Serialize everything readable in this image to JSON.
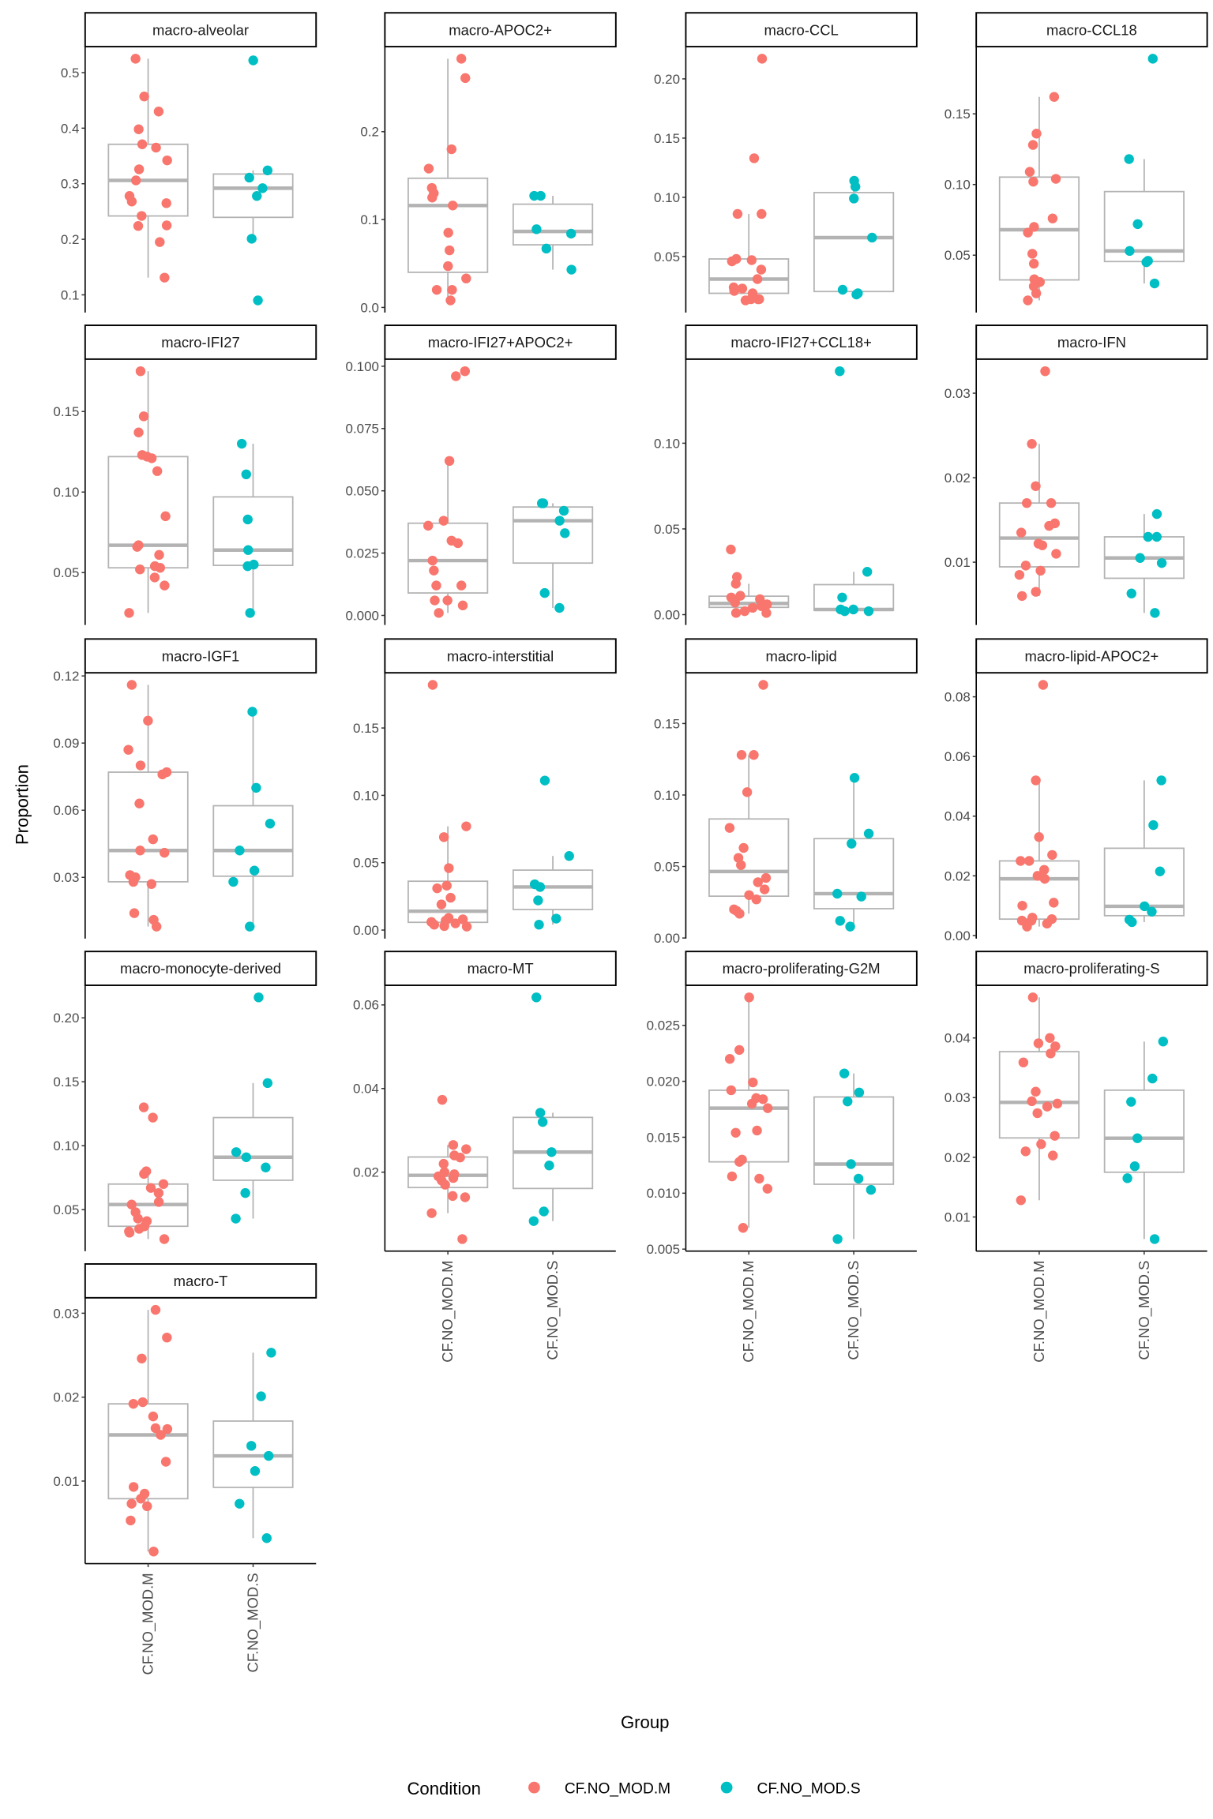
{
  "chart_data": {
    "type": "boxplot+jitter",
    "xlabel": "Group",
    "ylabel": "Proportion",
    "groups": [
      "CF.NO_MOD.M",
      "CF.NO_MOD.S"
    ],
    "legend": {
      "title": "Condition",
      "position": "bottom",
      "entries": [
        {
          "label": "CF.NO_MOD.M",
          "color": "#F8766D"
        },
        {
          "label": "CF.NO_MOD.S",
          "color": "#00BFC4"
        }
      ]
    },
    "box_color": "#B3B3B3",
    "grid": false,
    "facets": [
      {
        "title": "macro-alveolar",
        "ticks": [
          "0.1",
          "0.2",
          "0.3",
          "0.4",
          "0.5"
        ],
        "M": [
          0.525,
          0.457,
          0.43,
          0.398,
          0.371,
          0.365,
          0.342,
          0.326,
          0.306,
          0.278,
          0.268,
          0.265,
          0.242,
          0.225,
          0.224,
          0.195,
          0.131
        ],
        "S": [
          0.522,
          0.324,
          0.311,
          0.292,
          0.278,
          0.201,
          0.09
        ]
      },
      {
        "title": "macro-APOC2+",
        "ticks": [
          "0.0",
          "0.1",
          "0.2"
        ],
        "M": [
          0.283,
          0.261,
          0.18,
          0.158,
          0.136,
          0.13,
          0.125,
          0.116,
          0.085,
          0.065,
          0.047,
          0.033,
          0.02,
          0.02,
          0.008
        ],
        "S": [
          0.127,
          0.127,
          0.089,
          0.084,
          0.067,
          0.043
        ]
      },
      {
        "title": "macro-CCL",
        "ticks": [
          "0.05",
          "0.10",
          "0.15",
          "0.20"
        ],
        "M": [
          0.217,
          0.133,
          0.086,
          0.086,
          0.048,
          0.047,
          0.046,
          0.039,
          0.031,
          0.024,
          0.023,
          0.021,
          0.019,
          0.014,
          0.014,
          0.013,
          0.014
        ],
        "S": [
          0.114,
          0.109,
          0.099,
          0.066,
          0.022,
          0.019,
          0.018
        ]
      },
      {
        "title": "macro-CCL18",
        "ticks": [
          "0.05",
          "0.10",
          "0.15"
        ],
        "M": [
          0.162,
          0.136,
          0.128,
          0.109,
          0.104,
          0.102,
          0.076,
          0.07,
          0.066,
          0.051,
          0.044,
          0.033,
          0.031,
          0.028,
          0.023,
          0.018
        ],
        "S": [
          0.189,
          0.118,
          0.072,
          0.053,
          0.046,
          0.045,
          0.03
        ]
      },
      {
        "title": "macro-IFI27",
        "ticks": [
          "0.05",
          "0.10",
          "0.15"
        ],
        "M": [
          0.175,
          0.147,
          0.137,
          0.123,
          0.122,
          0.121,
          0.113,
          0.085,
          0.067,
          0.066,
          0.061,
          0.054,
          0.053,
          0.052,
          0.047,
          0.042,
          0.025
        ],
        "S": [
          0.13,
          0.111,
          0.083,
          0.064,
          0.055,
          0.054,
          0.025
        ]
      },
      {
        "title": "macro-IFI27+APOC2+",
        "ticks": [
          "0.000",
          "0.025",
          "0.050",
          "0.075",
          "0.100"
        ],
        "M": [
          0.098,
          0.096,
          0.062,
          0.038,
          0.036,
          0.03,
          0.029,
          0.022,
          0.018,
          0.012,
          0.012,
          0.006,
          0.006,
          0.004,
          0.001
        ],
        "S": [
          0.045,
          0.045,
          0.042,
          0.038,
          0.033,
          0.009,
          0.003
        ]
      },
      {
        "title": "macro-IFI27+CCL18+",
        "ticks": [
          "0.00",
          "0.05",
          "0.10"
        ],
        "M": [
          0.038,
          0.022,
          0.018,
          0.011,
          0.01,
          0.009,
          0.007,
          0.006,
          0.005,
          0.005,
          0.004,
          0.002,
          0.001,
          0.001
        ],
        "S": [
          0.142,
          0.025,
          0.01,
          0.003,
          0.003,
          0.002,
          0.002
        ]
      },
      {
        "title": "macro-IFN",
        "ticks": [
          "0.01",
          "0.02",
          "0.03"
        ],
        "M": [
          0.0326,
          0.024,
          0.019,
          0.017,
          0.017,
          0.0146,
          0.0143,
          0.0135,
          0.0122,
          0.012,
          0.011,
          0.0096,
          0.009,
          0.0085,
          0.0065,
          0.006
        ],
        "S": [
          0.0157,
          0.013,
          0.013,
          0.0105,
          0.0099,
          0.0063,
          0.004
        ]
      },
      {
        "title": "macro-IGF1",
        "ticks": [
          "0.03",
          "0.06",
          "0.09",
          "0.12"
        ],
        "M": [
          0.116,
          0.1,
          0.087,
          0.08,
          0.077,
          0.076,
          0.063,
          0.047,
          0.042,
          0.041,
          0.031,
          0.03,
          0.028,
          0.027,
          0.014,
          0.011,
          0.008
        ],
        "S": [
          0.104,
          0.07,
          0.054,
          0.042,
          0.033,
          0.028,
          0.008
        ]
      },
      {
        "title": "macro-interstitial",
        "ticks": [
          "0.00",
          "0.05",
          "0.10",
          "0.15"
        ],
        "M": [
          0.182,
          0.077,
          0.069,
          0.046,
          0.033,
          0.031,
          0.024,
          0.019,
          0.009,
          0.008,
          0.007,
          0.006,
          0.005,
          0.004,
          0.003,
          0.0026
        ],
        "S": [
          0.111,
          0.055,
          0.034,
          0.032,
          0.022,
          0.0085,
          0.004
        ]
      },
      {
        "title": "macro-lipid",
        "ticks": [
          "0.00",
          "0.05",
          "0.10",
          "0.15"
        ],
        "M": [
          0.177,
          0.128,
          0.128,
          0.102,
          0.077,
          0.063,
          0.056,
          0.051,
          0.042,
          0.039,
          0.034,
          0.03,
          0.027,
          0.02,
          0.019,
          0.017
        ],
        "S": [
          0.112,
          0.073,
          0.066,
          0.031,
          0.029,
          0.012,
          0.008
        ]
      },
      {
        "title": "macro-lipid-APOC2+",
        "ticks": [
          "0.00",
          "0.02",
          "0.04",
          "0.06",
          "0.08"
        ],
        "M": [
          0.084,
          0.052,
          0.033,
          0.027,
          0.025,
          0.025,
          0.022,
          0.02,
          0.019,
          0.011,
          0.01,
          0.006,
          0.0055,
          0.005,
          0.005,
          0.004,
          0.003
        ],
        "S": [
          0.052,
          0.037,
          0.0215,
          0.0098,
          0.008,
          0.0053,
          0.0045
        ]
      },
      {
        "title": "macro-monocyte-derived",
        "ticks": [
          "0.05",
          "0.10",
          "0.15",
          "0.20"
        ],
        "M": [
          0.13,
          0.122,
          0.08,
          0.078,
          0.07,
          0.067,
          0.063,
          0.056,
          0.054,
          0.048,
          0.043,
          0.041,
          0.037,
          0.035,
          0.033,
          0.032,
          0.027
        ],
        "S": [
          0.216,
          0.149,
          0.095,
          0.091,
          0.083,
          0.063,
          0.043
        ]
      },
      {
        "title": "macro-MT",
        "ticks": [
          "0.02",
          "0.04",
          "0.06"
        ],
        "M": [
          0.0373,
          0.0265,
          0.0255,
          0.024,
          0.0235,
          0.022,
          0.02,
          0.0195,
          0.019,
          0.0186,
          0.018,
          0.017,
          0.0143,
          0.014,
          0.0102,
          0.004
        ],
        "S": [
          0.0618,
          0.0342,
          0.032,
          0.0248,
          0.0216,
          0.0106,
          0.0083
        ]
      },
      {
        "title": "macro-proliferating-G2M",
        "ticks": [
          "0.005",
          "0.010",
          "0.015",
          "0.020",
          "0.025"
        ],
        "M": [
          0.0275,
          0.0228,
          0.022,
          0.0199,
          0.0192,
          0.0185,
          0.0184,
          0.018,
          0.0176,
          0.0156,
          0.0154,
          0.013,
          0.0128,
          0.0115,
          0.0113,
          0.0104,
          0.0069
        ],
        "S": [
          0.0207,
          0.019,
          0.0182,
          0.0126,
          0.0113,
          0.0103,
          0.0059
        ]
      },
      {
        "title": "macro-proliferating-S",
        "ticks": [
          "0.01",
          "0.02",
          "0.03",
          "0.04"
        ],
        "M": [
          0.0468,
          0.04,
          0.0391,
          0.0386,
          0.0374,
          0.0359,
          0.031,
          0.0294,
          0.029,
          0.0285,
          0.0274,
          0.0236,
          0.0222,
          0.021,
          0.0203,
          0.0128
        ],
        "S": [
          0.0394,
          0.0332,
          0.0293,
          0.0232,
          0.0185,
          0.0165,
          0.0063
        ]
      },
      {
        "title": "macro-T",
        "ticks": [
          "0.01",
          "0.02",
          "0.03"
        ],
        "M": [
          0.0304,
          0.0271,
          0.0246,
          0.0194,
          0.0192,
          0.0177,
          0.0163,
          0.0162,
          0.0155,
          0.0123,
          0.0093,
          0.0085,
          0.0079,
          0.0073,
          0.007,
          0.0053,
          0.0016
        ],
        "S": [
          0.0253,
          0.0201,
          0.0142,
          0.013,
          0.0112,
          0.0073,
          0.0032
        ]
      }
    ]
  }
}
